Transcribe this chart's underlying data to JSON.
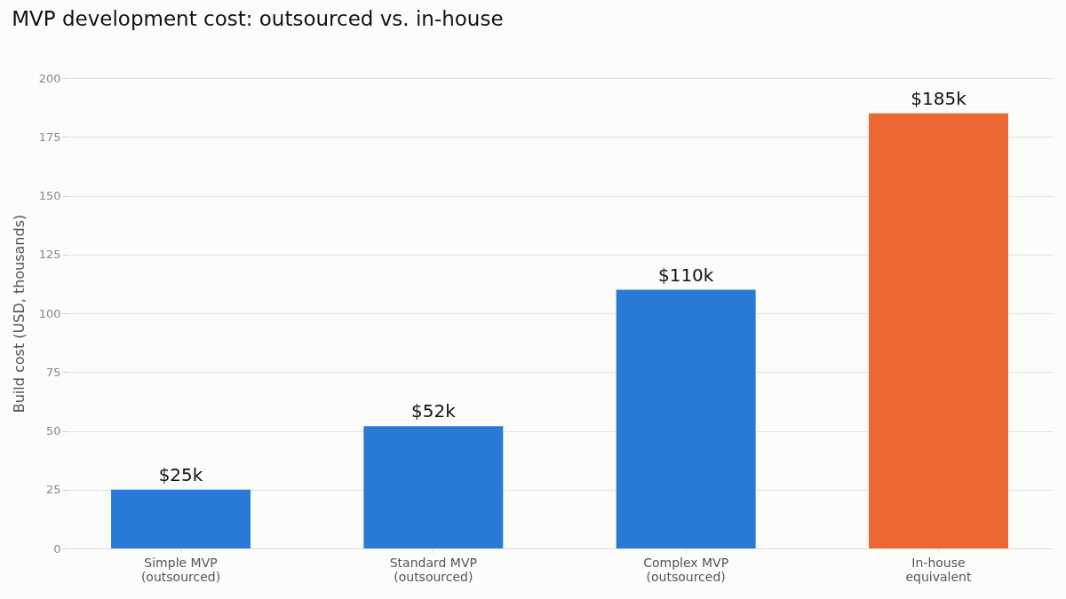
{
  "chart_data": {
    "type": "bar",
    "title": "MVP development cost: outsourced vs. in-house",
    "ylabel": "Build cost (USD, thousands)",
    "categories": [
      "Simple MVP\n(outsourced)",
      "Standard MVP\n(outsourced)",
      "Complex MVP\n(outsourced)",
      "In-house\nequivalent"
    ],
    "values": [
      25,
      52,
      110,
      185
    ],
    "colors": [
      "#2979d6",
      "#2979d6",
      "#2979d6",
      "#eb6834"
    ],
    "value_labels": [
      "$25k",
      "$52k",
      "$110k",
      "$185k"
    ],
    "ylim": [
      0,
      200
    ],
    "yticks": [
      0,
      25,
      50,
      75,
      100,
      125,
      150,
      175,
      200
    ],
    "grid": "y"
  }
}
